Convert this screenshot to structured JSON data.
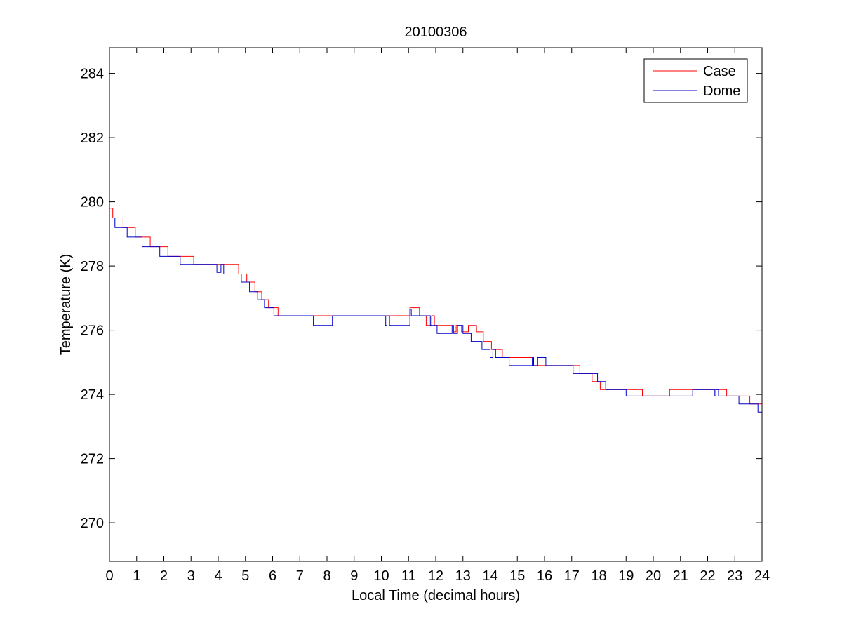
{
  "chart_data": {
    "type": "line",
    "title": "20100306",
    "xlabel": "Local Time (decimal hours)",
    "ylabel": "Temperature (K)",
    "xlim": [
      0,
      24
    ],
    "ylim": [
      268.8,
      284.8
    ],
    "xticks": [
      0,
      1,
      2,
      3,
      4,
      5,
      6,
      7,
      8,
      9,
      10,
      11,
      12,
      13,
      14,
      15,
      16,
      17,
      18,
      19,
      20,
      21,
      22,
      23,
      24
    ],
    "yticks": [
      270,
      272,
      274,
      276,
      278,
      280,
      282,
      284
    ],
    "grid": false,
    "legend_position": "top-right",
    "series": [
      {
        "name": "Case",
        "color": "#ff0000",
        "step": true,
        "x": [
          0,
          0.12,
          0.5,
          0.95,
          1.5,
          2.15,
          3.1,
          4.75,
          5.05,
          5.35,
          5.6,
          5.85,
          6.2,
          6.55,
          11.05,
          11.4,
          11.65,
          11.85,
          11.95,
          12.25,
          12.65,
          12.75,
          12.95,
          13.2,
          13.5,
          13.75,
          14.05,
          14.45,
          15.6,
          15.85,
          17.3,
          17.75,
          18.05,
          18.55,
          19.6,
          20.6,
          20.65,
          21.5,
          22.05,
          22.25,
          22.35,
          22.7,
          23.05,
          23.55,
          24
        ],
        "y": [
          279.8,
          279.5,
          279.2,
          278.9,
          278.6,
          278.3,
          278.05,
          277.75,
          277.5,
          277.2,
          276.95,
          276.7,
          276.45,
          276.45,
          276.7,
          276.45,
          276.15,
          276.45,
          276.15,
          276.15,
          275.95,
          276.15,
          275.95,
          276.15,
          275.95,
          275.65,
          275.4,
          275.15,
          274.9,
          274.9,
          274.65,
          274.4,
          274.15,
          274.15,
          273.95,
          274.15,
          274.15,
          274.15,
          274.15,
          274.15,
          274.15,
          273.95,
          273.95,
          273.7,
          273.7
        ]
      },
      {
        "name": "Dome",
        "color": "#0000cc",
        "step": true,
        "x": [
          0,
          0.2,
          0.65,
          1.2,
          1.85,
          2.6,
          3.95,
          4.1,
          4.2,
          4.4,
          4.85,
          5.15,
          5.45,
          5.7,
          6.05,
          6.45,
          7.5,
          8.2,
          10.15,
          10.2,
          10.3,
          11.05,
          11.1,
          11.25,
          11.8,
          12.05,
          12.6,
          12.65,
          12.8,
          13.0,
          13.3,
          13.7,
          14.0,
          14.1,
          14.2,
          14.35,
          14.7,
          15.55,
          15.6,
          15.75,
          16.05,
          17.05,
          17.6,
          17.95,
          18.25,
          18.7,
          19.0,
          19.8,
          20.85,
          21.45,
          21.8,
          22.25,
          22.3,
          22.4,
          22.8,
          23.15,
          23.5,
          23.85,
          24
        ],
        "y": [
          279.5,
          279.2,
          278.9,
          278.6,
          278.3,
          278.05,
          277.8,
          278.05,
          277.75,
          277.75,
          277.5,
          277.2,
          276.95,
          276.7,
          276.45,
          276.45,
          276.15,
          276.45,
          276.15,
          276.45,
          276.15,
          276.65,
          276.45,
          276.45,
          276.15,
          275.9,
          276.15,
          275.9,
          276.15,
          275.9,
          275.65,
          275.4,
          275.15,
          275.4,
          275.15,
          275.15,
          274.9,
          275.15,
          274.9,
          275.15,
          274.9,
          274.65,
          274.65,
          274.4,
          274.15,
          274.15,
          273.95,
          273.95,
          273.95,
          274.15,
          274.15,
          273.95,
          274.15,
          273.95,
          273.95,
          273.7,
          273.7,
          273.45,
          273.45
        ]
      }
    ]
  }
}
